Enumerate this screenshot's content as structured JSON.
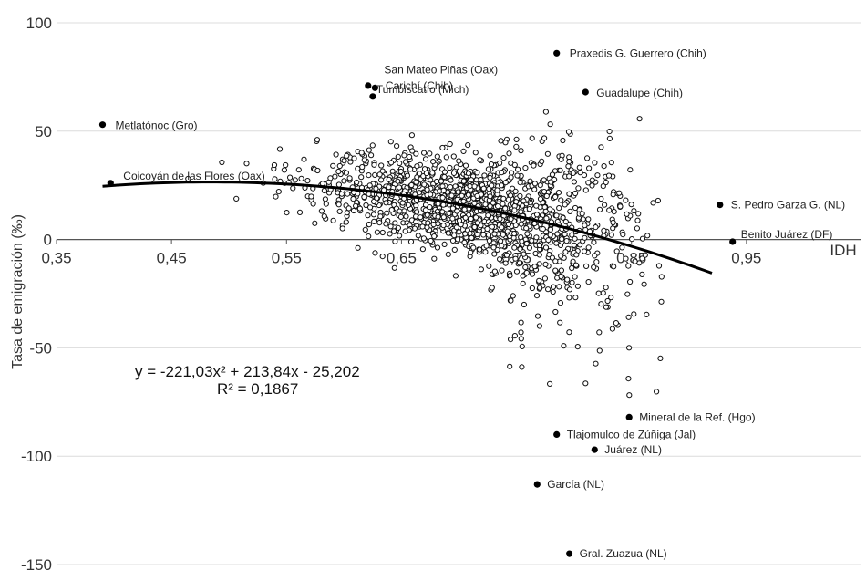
{
  "chart_data": {
    "type": "scatter",
    "title": "",
    "xlabel": "IDH",
    "ylabel": "Tasa de emigración (‰)",
    "xlim": [
      0.35,
      1.05
    ],
    "ylim": [
      -150,
      100
    ],
    "x_ticks": [
      "0,35",
      "0,45",
      "0,55",
      "0,65",
      "0,75",
      "0,85",
      "0,95"
    ],
    "x_tick_values": [
      0.35,
      0.45,
      0.55,
      0.65,
      0.75,
      0.85,
      0.95
    ],
    "y_ticks": [
      "100",
      "50",
      "0",
      "-50",
      "-100",
      "-150"
    ],
    "y_tick_values": [
      100,
      50,
      0,
      -50,
      -100,
      -150
    ],
    "grid": "horizontal",
    "trendline": {
      "type": "polynomial",
      "coefficients": [
        -221.03,
        213.84,
        -25.202
      ],
      "x_range": [
        0.39,
        0.92
      ],
      "equation": "y = -221,03x² + 213,84x - 25,202",
      "r2": "R² = 0,1867"
    },
    "labeled_points": [
      {
        "name": "Praxedis G. Guerrero (Chih)",
        "x": 0.785,
        "y": 86
      },
      {
        "name": "San Mateo Piñas (Oax)",
        "x": 0.627,
        "y": 70
      },
      {
        "name": "Carichí (Chih)",
        "x": 0.625,
        "y": 66
      },
      {
        "name": "Tumbiscatío (Mich)",
        "x": 0.621,
        "y": 71
      },
      {
        "name": "Guadalupe (Chih)",
        "x": 0.81,
        "y": 68
      },
      {
        "name": "Metlatónoc (Gro)",
        "x": 0.39,
        "y": 53
      },
      {
        "name": "Coicoyán de las Flores (Oax)",
        "x": 0.397,
        "y": 26
      },
      {
        "name": "S. Pedro Garza G. (NL)",
        "x": 0.927,
        "y": 16
      },
      {
        "name": "Benito Juárez (DF)",
        "x": 0.938,
        "y": -1
      },
      {
        "name": "Mineral de la Ref. (Hgo)",
        "x": 0.848,
        "y": -82
      },
      {
        "name": "Tlajomulco de Zúñiga (Jal)",
        "x": 0.785,
        "y": -90
      },
      {
        "name": "Juárez (NL)",
        "x": 0.818,
        "y": -97
      },
      {
        "name": "García (NL)",
        "x": 0.768,
        "y": -113
      },
      {
        "name": "Gral. Zuazua (NL)",
        "x": 0.796,
        "y": -145
      }
    ],
    "scatter_summary": {
      "approx_count": 2300,
      "x_range": [
        0.44,
        0.88
      ],
      "y_range": [
        -72,
        63
      ]
    }
  }
}
